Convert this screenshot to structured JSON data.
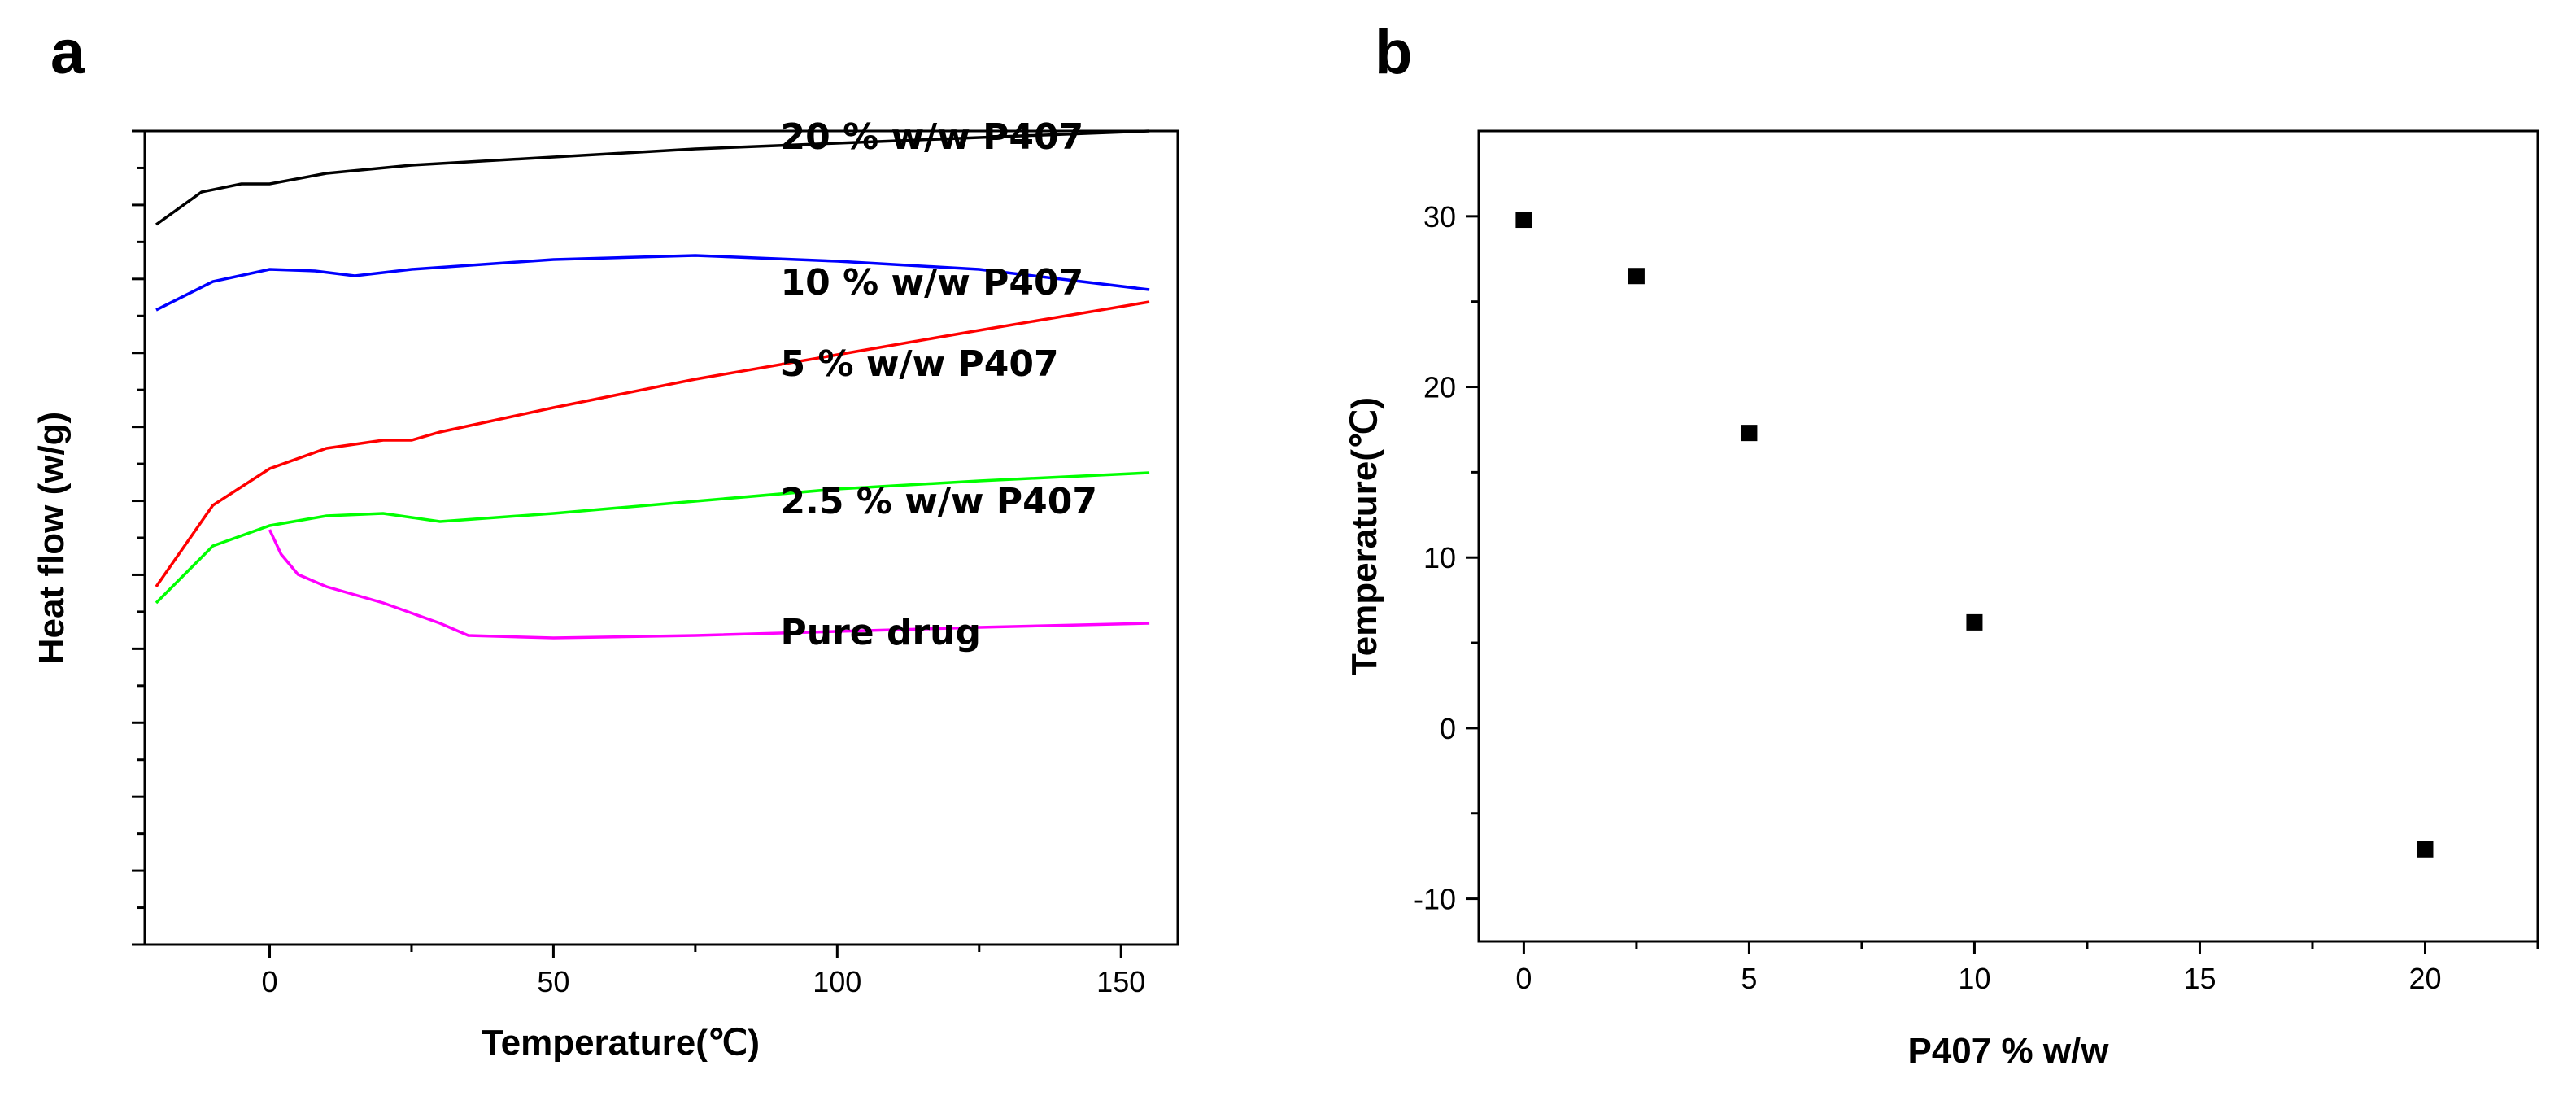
{
  "chart_data": [
    {
      "panel": "a",
      "type": "line",
      "title": "",
      "xlabel": "Temperature(℃)",
      "ylabel": "Heat flow (w/g)",
      "xlim": [
        -22,
        160
      ],
      "xticks": [
        "0",
        "50",
        "100",
        "150"
      ],
      "yticks_labeled": false,
      "series": [
        {
          "name": "20 % w/w P407",
          "color": "#000000",
          "x": [
            -20,
            -12,
            -5,
            0,
            10,
            25,
            50,
            75,
            100,
            125,
            155
          ],
          "y": [
            0.885,
            0.925,
            0.935,
            0.935,
            0.948,
            0.958,
            0.968,
            0.978,
            0.985,
            0.992,
            1.0
          ]
        },
        {
          "name": "10 % w/w P407",
          "color": "#0000ff",
          "x": [
            -20,
            -10,
            0,
            8,
            15,
            25,
            50,
            75,
            100,
            125,
            155
          ],
          "y": [
            0.78,
            0.815,
            0.83,
            0.828,
            0.822,
            0.83,
            0.842,
            0.847,
            0.84,
            0.83,
            0.805
          ]
        },
        {
          "name": "5 % w/w P407",
          "color": "#ff0000",
          "x": [
            -20,
            -10,
            0,
            10,
            20,
            25,
            30,
            50,
            75,
            100,
            125,
            155
          ],
          "y": [
            0.44,
            0.54,
            0.585,
            0.61,
            0.62,
            0.62,
            0.63,
            0.66,
            0.695,
            0.725,
            0.755,
            0.79
          ]
        },
        {
          "name": "2.5 % w/w P407",
          "color": "#00ff00",
          "x": [
            -20,
            -10,
            0,
            10,
            20,
            25,
            30,
            50,
            75,
            100,
            125,
            155
          ],
          "y": [
            0.42,
            0.49,
            0.515,
            0.527,
            0.53,
            0.525,
            0.52,
            0.53,
            0.545,
            0.56,
            0.57,
            0.58
          ]
        },
        {
          "name": "Pure drug",
          "color": "#ff00ff",
          "x": [
            0,
            2,
            5,
            10,
            20,
            30,
            35,
            50,
            75,
            100,
            125,
            155
          ],
          "y": [
            0.51,
            0.48,
            0.455,
            0.44,
            0.42,
            0.395,
            0.38,
            0.377,
            0.38,
            0.385,
            0.39,
            0.395
          ]
        }
      ]
    },
    {
      "panel": "b",
      "type": "scatter",
      "title": "",
      "xlabel": "P407 % w/w",
      "ylabel": "Temperature(℃)",
      "xlim": [
        -1,
        22.5
      ],
      "ylim": [
        -12.5,
        35
      ],
      "xticks": [
        0,
        5,
        10,
        15,
        20
      ],
      "yticks": [
        -10,
        0,
        10,
        20,
        30
      ],
      "series": [
        {
          "name": "",
          "color": "#000000",
          "marker": "square",
          "x": [
            0,
            2.5,
            5,
            10,
            20
          ],
          "y": [
            29.8,
            26.5,
            17.3,
            6.2,
            -7.1
          ]
        }
      ]
    }
  ]
}
